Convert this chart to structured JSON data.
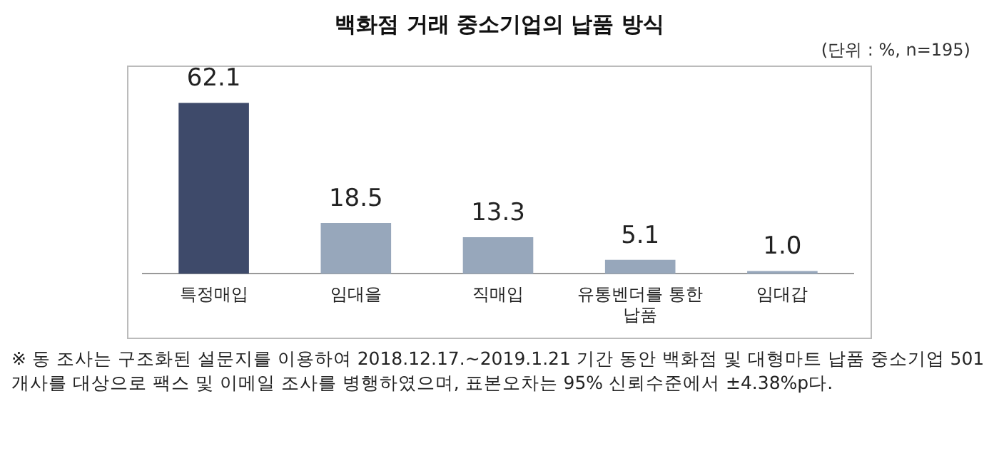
{
  "chart_data": {
    "type": "bar",
    "title": "백화점 거래 중소기업의 납품 방식",
    "subtitle": "(단위 : %, n=195)",
    "categories": [
      "특정매입",
      "임대을",
      "직매입",
      "유통벤더를 통한 납품",
      "임대갑"
    ],
    "values": [
      62.1,
      18.5,
      13.3,
      5.1,
      1.0
    ],
    "colors": [
      "#3e4a6a",
      "#97a7bb",
      "#97a7bb",
      "#97a7bb",
      "#97a7bb"
    ],
    "value_labels": [
      "62.1",
      "18.5",
      "13.3",
      "5.1",
      "1.0"
    ],
    "grid": false,
    "legend": false,
    "annotations": [
      "※ 동 조사는 구조화된 설문지를 이용하여 2018.12.17.~2019.1.21 기간 동안 백화점 및 대형마트 납품 중소기업 501개사를 대상으로 팩스 및 이메일 조사를 병행하였으며, 표본오차는 95% 신뢰수준에서 ±4.38%p다."
    ]
  }
}
